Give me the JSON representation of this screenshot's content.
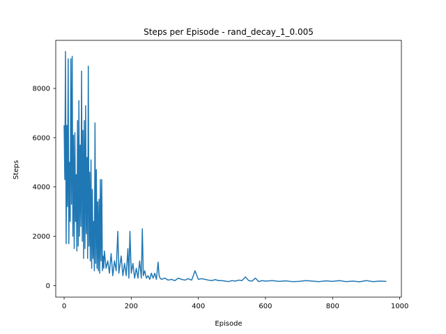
{
  "chart_data": {
    "type": "line",
    "title": "Steps per Episode - rand_decay_1_0.005",
    "xlabel": "Episode",
    "ylabel": "Steps",
    "xlim": [
      -25,
      1005
    ],
    "ylim": [
      -470,
      9950
    ],
    "xticks": [
      0,
      200,
      400,
      600,
      800,
      1000
    ],
    "xtick_labels": [
      "0",
      "200",
      "400",
      "600",
      "800",
      "1000"
    ],
    "yticks": [
      0,
      2000,
      4000,
      6000,
      8000
    ],
    "ytick_labels": [
      "0",
      "2000",
      "4000",
      "6000",
      "8000"
    ],
    "grid": false,
    "line_color": "#1f77b4",
    "series": [
      {
        "name": "",
        "x": [
          0,
          2,
          4,
          6,
          8,
          10,
          12,
          14,
          16,
          18,
          20,
          22,
          24,
          26,
          28,
          30,
          32,
          34,
          36,
          38,
          40,
          42,
          44,
          46,
          48,
          50,
          52,
          54,
          56,
          58,
          60,
          62,
          64,
          66,
          68,
          70,
          72,
          74,
          76,
          78,
          80,
          82,
          84,
          86,
          88,
          90,
          92,
          94,
          96,
          98,
          100,
          102,
          104,
          106,
          108,
          110,
          112,
          114,
          116,
          118,
          120,
          125,
          130,
          135,
          140,
          145,
          150,
          155,
          160,
          163,
          166,
          170,
          175,
          180,
          185,
          190,
          193,
          196,
          200,
          205,
          210,
          215,
          220,
          225,
          230,
          233,
          236,
          240,
          245,
          250,
          255,
          260,
          265,
          270,
          275,
          280,
          283,
          286,
          290,
          300,
          310,
          320,
          330,
          340,
          350,
          360,
          370,
          380,
          390,
          400,
          410,
          420,
          430,
          440,
          450,
          460,
          470,
          480,
          490,
          500,
          510,
          520,
          530,
          540,
          550,
          560,
          570,
          580,
          590,
          600,
          620,
          640,
          660,
          680,
          700,
          720,
          740,
          760,
          780,
          800,
          820,
          840,
          860,
          880,
          900,
          920,
          940,
          960
        ],
        "y": [
          6500,
          4300,
          9500,
          1700,
          6500,
          3200,
          9200,
          1700,
          5000,
          2600,
          9200,
          3300,
          9300,
          2000,
          6100,
          1500,
          6200,
          2600,
          4500,
          1400,
          6700,
          1600,
          7500,
          2000,
          5700,
          2400,
          8700,
          1800,
          6300,
          1100,
          6700,
          1500,
          7300,
          2100,
          5200,
          1100,
          8900,
          1600,
          4600,
          1000,
          5100,
          700,
          3900,
          1100,
          2600,
          600,
          6600,
          900,
          4700,
          700,
          3400,
          600,
          3500,
          500,
          4300,
          1000,
          4300,
          600,
          1200,
          700,
          1400,
          700,
          1000,
          500,
          1300,
          400,
          1000,
          600,
          2200,
          500,
          800,
          1200,
          400,
          900,
          400,
          1500,
          300,
          2200,
          500,
          900,
          300,
          700,
          300,
          1000,
          300,
          2300,
          400,
          600,
          300,
          400,
          250,
          500,
          300,
          500,
          250,
          950,
          400,
          300,
          250,
          300,
          220,
          250,
          200,
          300,
          250,
          220,
          280,
          220,
          600,
          250,
          280,
          250,
          220,
          200,
          240,
          200,
          200,
          180,
          160,
          200,
          180,
          220,
          200,
          350,
          200,
          180,
          300,
          160,
          200,
          180,
          200,
          170,
          190,
          160,
          170,
          200,
          180,
          160,
          190,
          170,
          200,
          160,
          180,
          150,
          200,
          160,
          180,
          170
        ]
      }
    ]
  }
}
